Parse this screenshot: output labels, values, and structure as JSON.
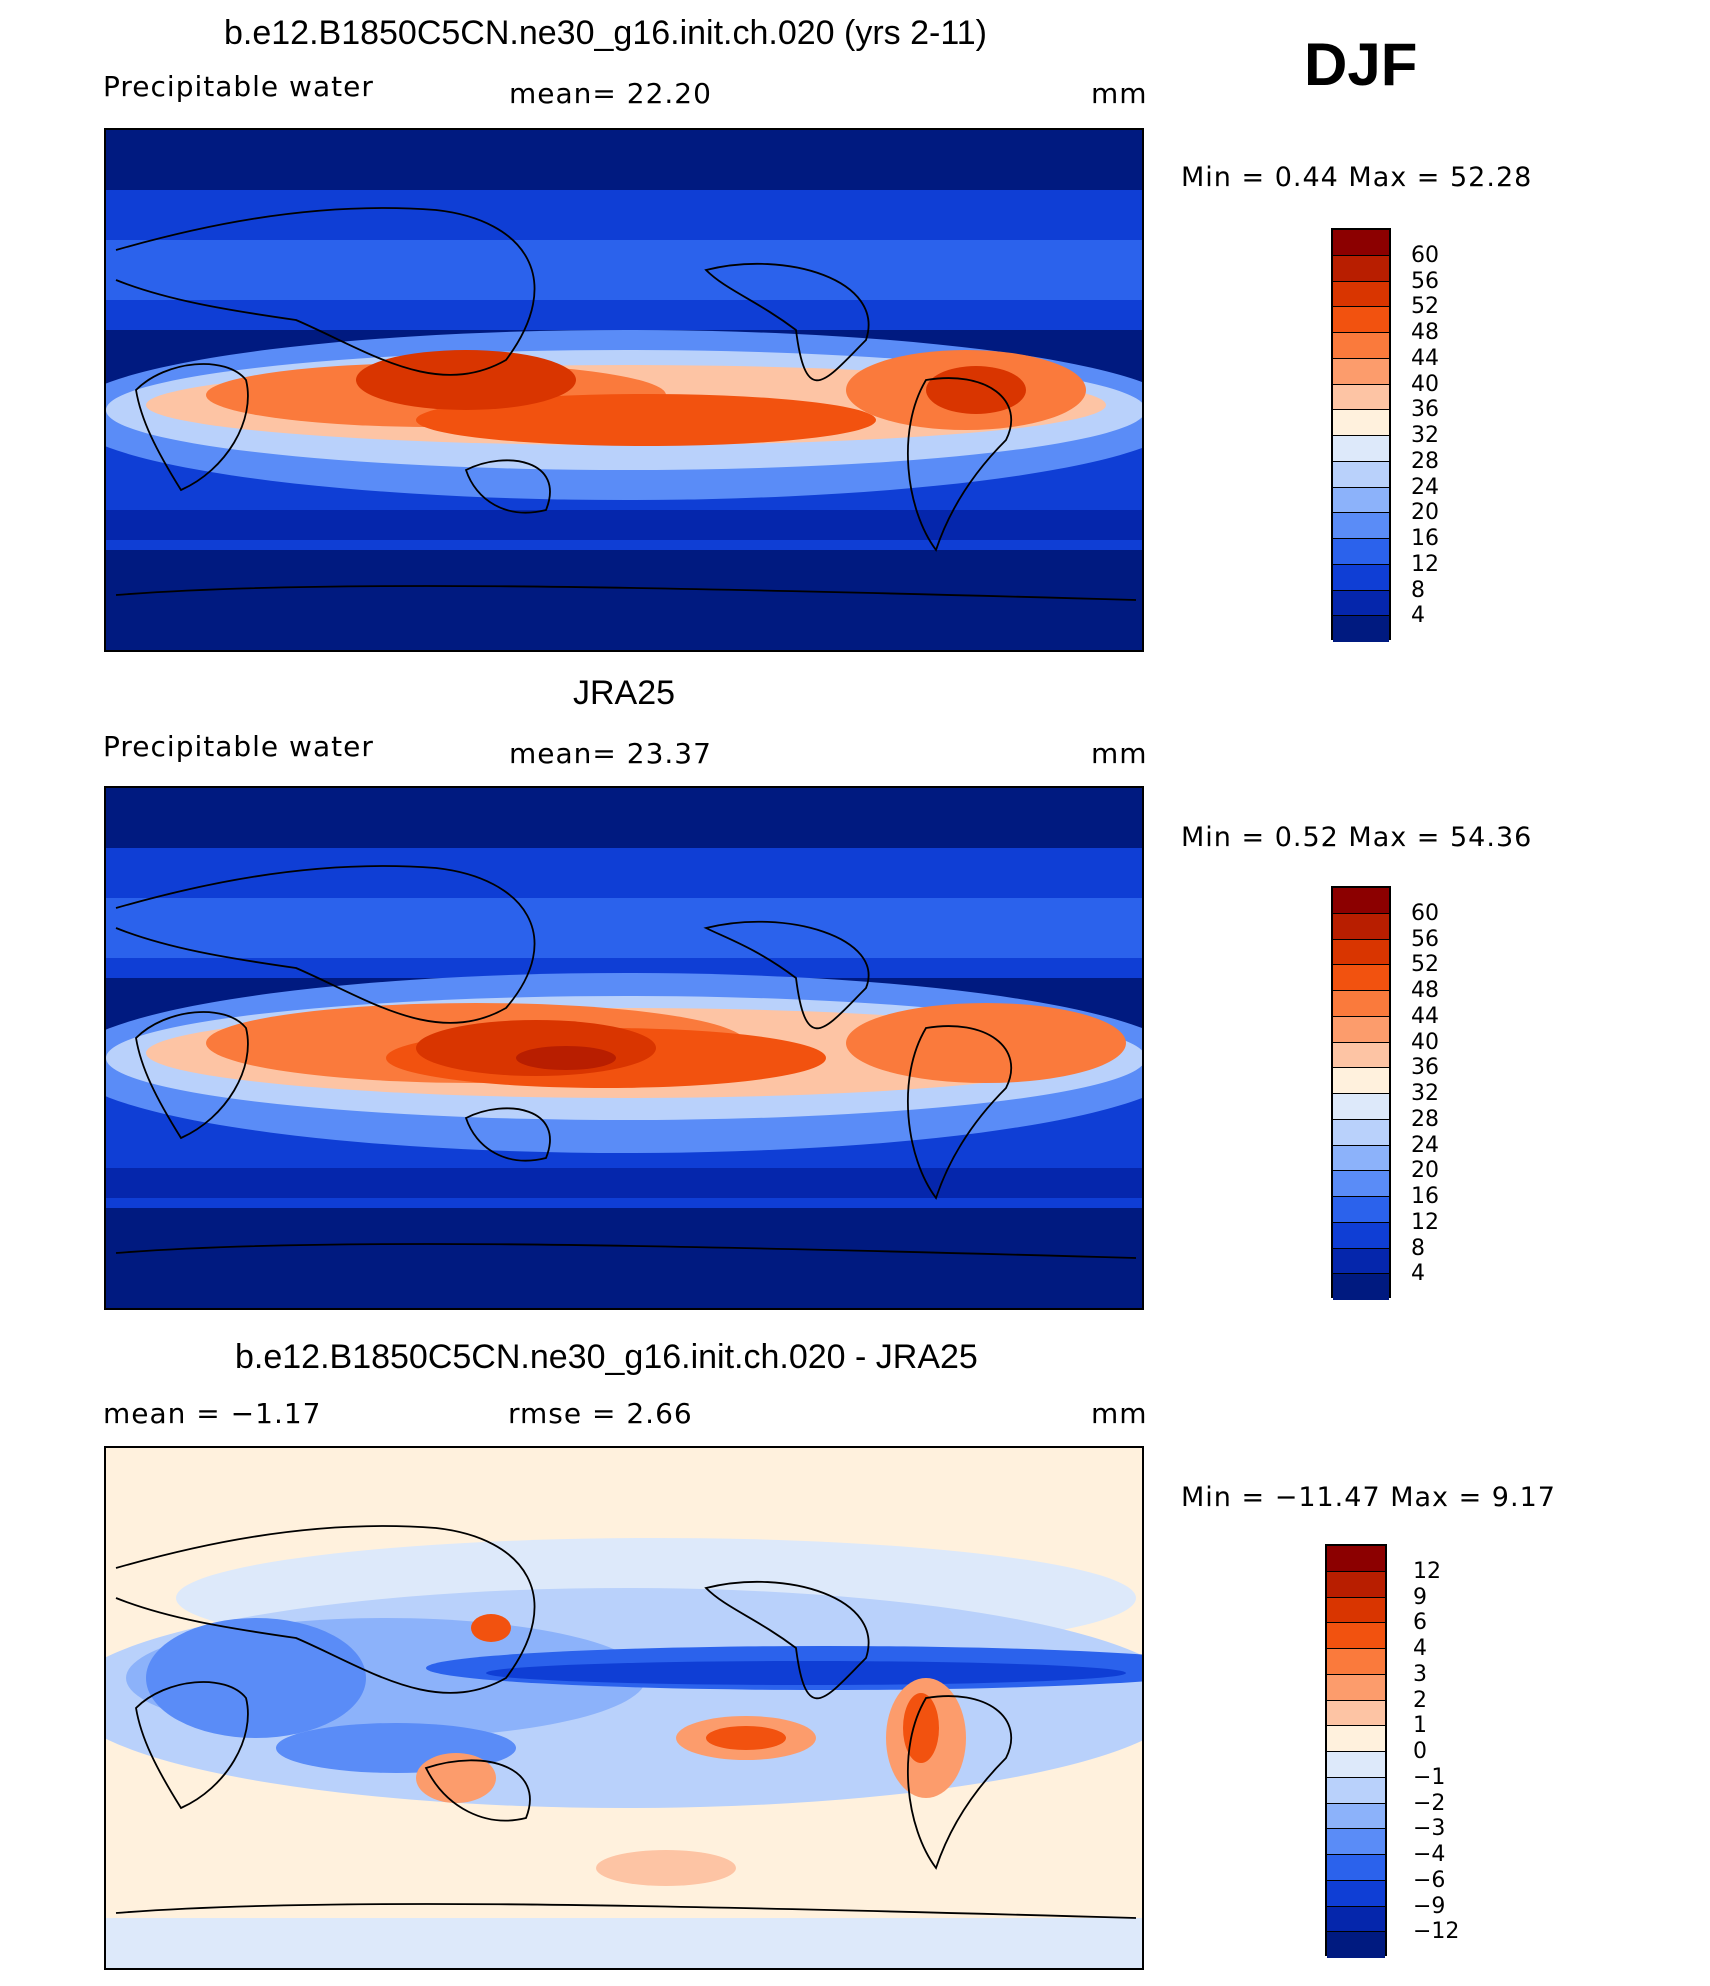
{
  "season": "DJF",
  "panels": [
    {
      "id": "model",
      "title": "b.e12.B1850C5CN.ne30_g16.init.ch.020 (yrs 2-11)",
      "left_label": "Precipitable  water",
      "center_label": "mean=   22.20",
      "units": "mm",
      "minmax": "Min  =     0.44  Max  =    52.28",
      "colorbar_ticks": [
        "60",
        "56",
        "52",
        "48",
        "44",
        "40",
        "36",
        "32",
        "28",
        "24",
        "20",
        "16",
        "12",
        "8",
        "4"
      ],
      "colorbar_colors": [
        "#8c0000",
        "#b81e00",
        "#d93500",
        "#f2520f",
        "#fa7a3c",
        "#fc9c6c",
        "#fdc4a4",
        "#fff1dd",
        "#dde9fa",
        "#b9d1fb",
        "#8cb2fa",
        "#5a8cf7",
        "#2b62ec",
        "#0f3ed5",
        "#0526ac",
        "#001a80"
      ]
    },
    {
      "id": "obs",
      "title": "JRA25",
      "left_label": "Precipitable  water",
      "center_label": "mean=   23.37",
      "units": "mm",
      "minmax": "Min  =     0.52  Max  =    54.36",
      "colorbar_ticks": [
        "60",
        "56",
        "52",
        "48",
        "44",
        "40",
        "36",
        "32",
        "28",
        "24",
        "20",
        "16",
        "12",
        "8",
        "4"
      ],
      "colorbar_colors": [
        "#8c0000",
        "#b81e00",
        "#d93500",
        "#f2520f",
        "#fa7a3c",
        "#fc9c6c",
        "#fdc4a4",
        "#fff1dd",
        "#dde9fa",
        "#b9d1fb",
        "#8cb2fa",
        "#5a8cf7",
        "#2b62ec",
        "#0f3ed5",
        "#0526ac",
        "#001a80"
      ]
    },
    {
      "id": "diff",
      "title": "b.e12.B1850C5CN.ne30_g16.init.ch.020 - JRA25",
      "left_label": "mean  =    −1.17",
      "center_label": "rmse  =     2.66",
      "units": "mm",
      "minmax": "Min  = −11.47  Max  =     9.17",
      "colorbar_ticks": [
        "12",
        "9",
        "6",
        "4",
        "3",
        "2",
        "1",
        "0",
        "−1",
        "−2",
        "−3",
        "−4",
        "−6",
        "−9",
        "−12"
      ],
      "colorbar_colors": [
        "#8c0000",
        "#b81e00",
        "#d93500",
        "#f2520f",
        "#fa7a3c",
        "#fc9c6c",
        "#fdc4a4",
        "#fff1dd",
        "#dde9fa",
        "#b9d1fb",
        "#8cb2fa",
        "#5a8cf7",
        "#2b62ec",
        "#0f3ed5",
        "#0526ac",
        "#001a80"
      ]
    }
  ]
}
